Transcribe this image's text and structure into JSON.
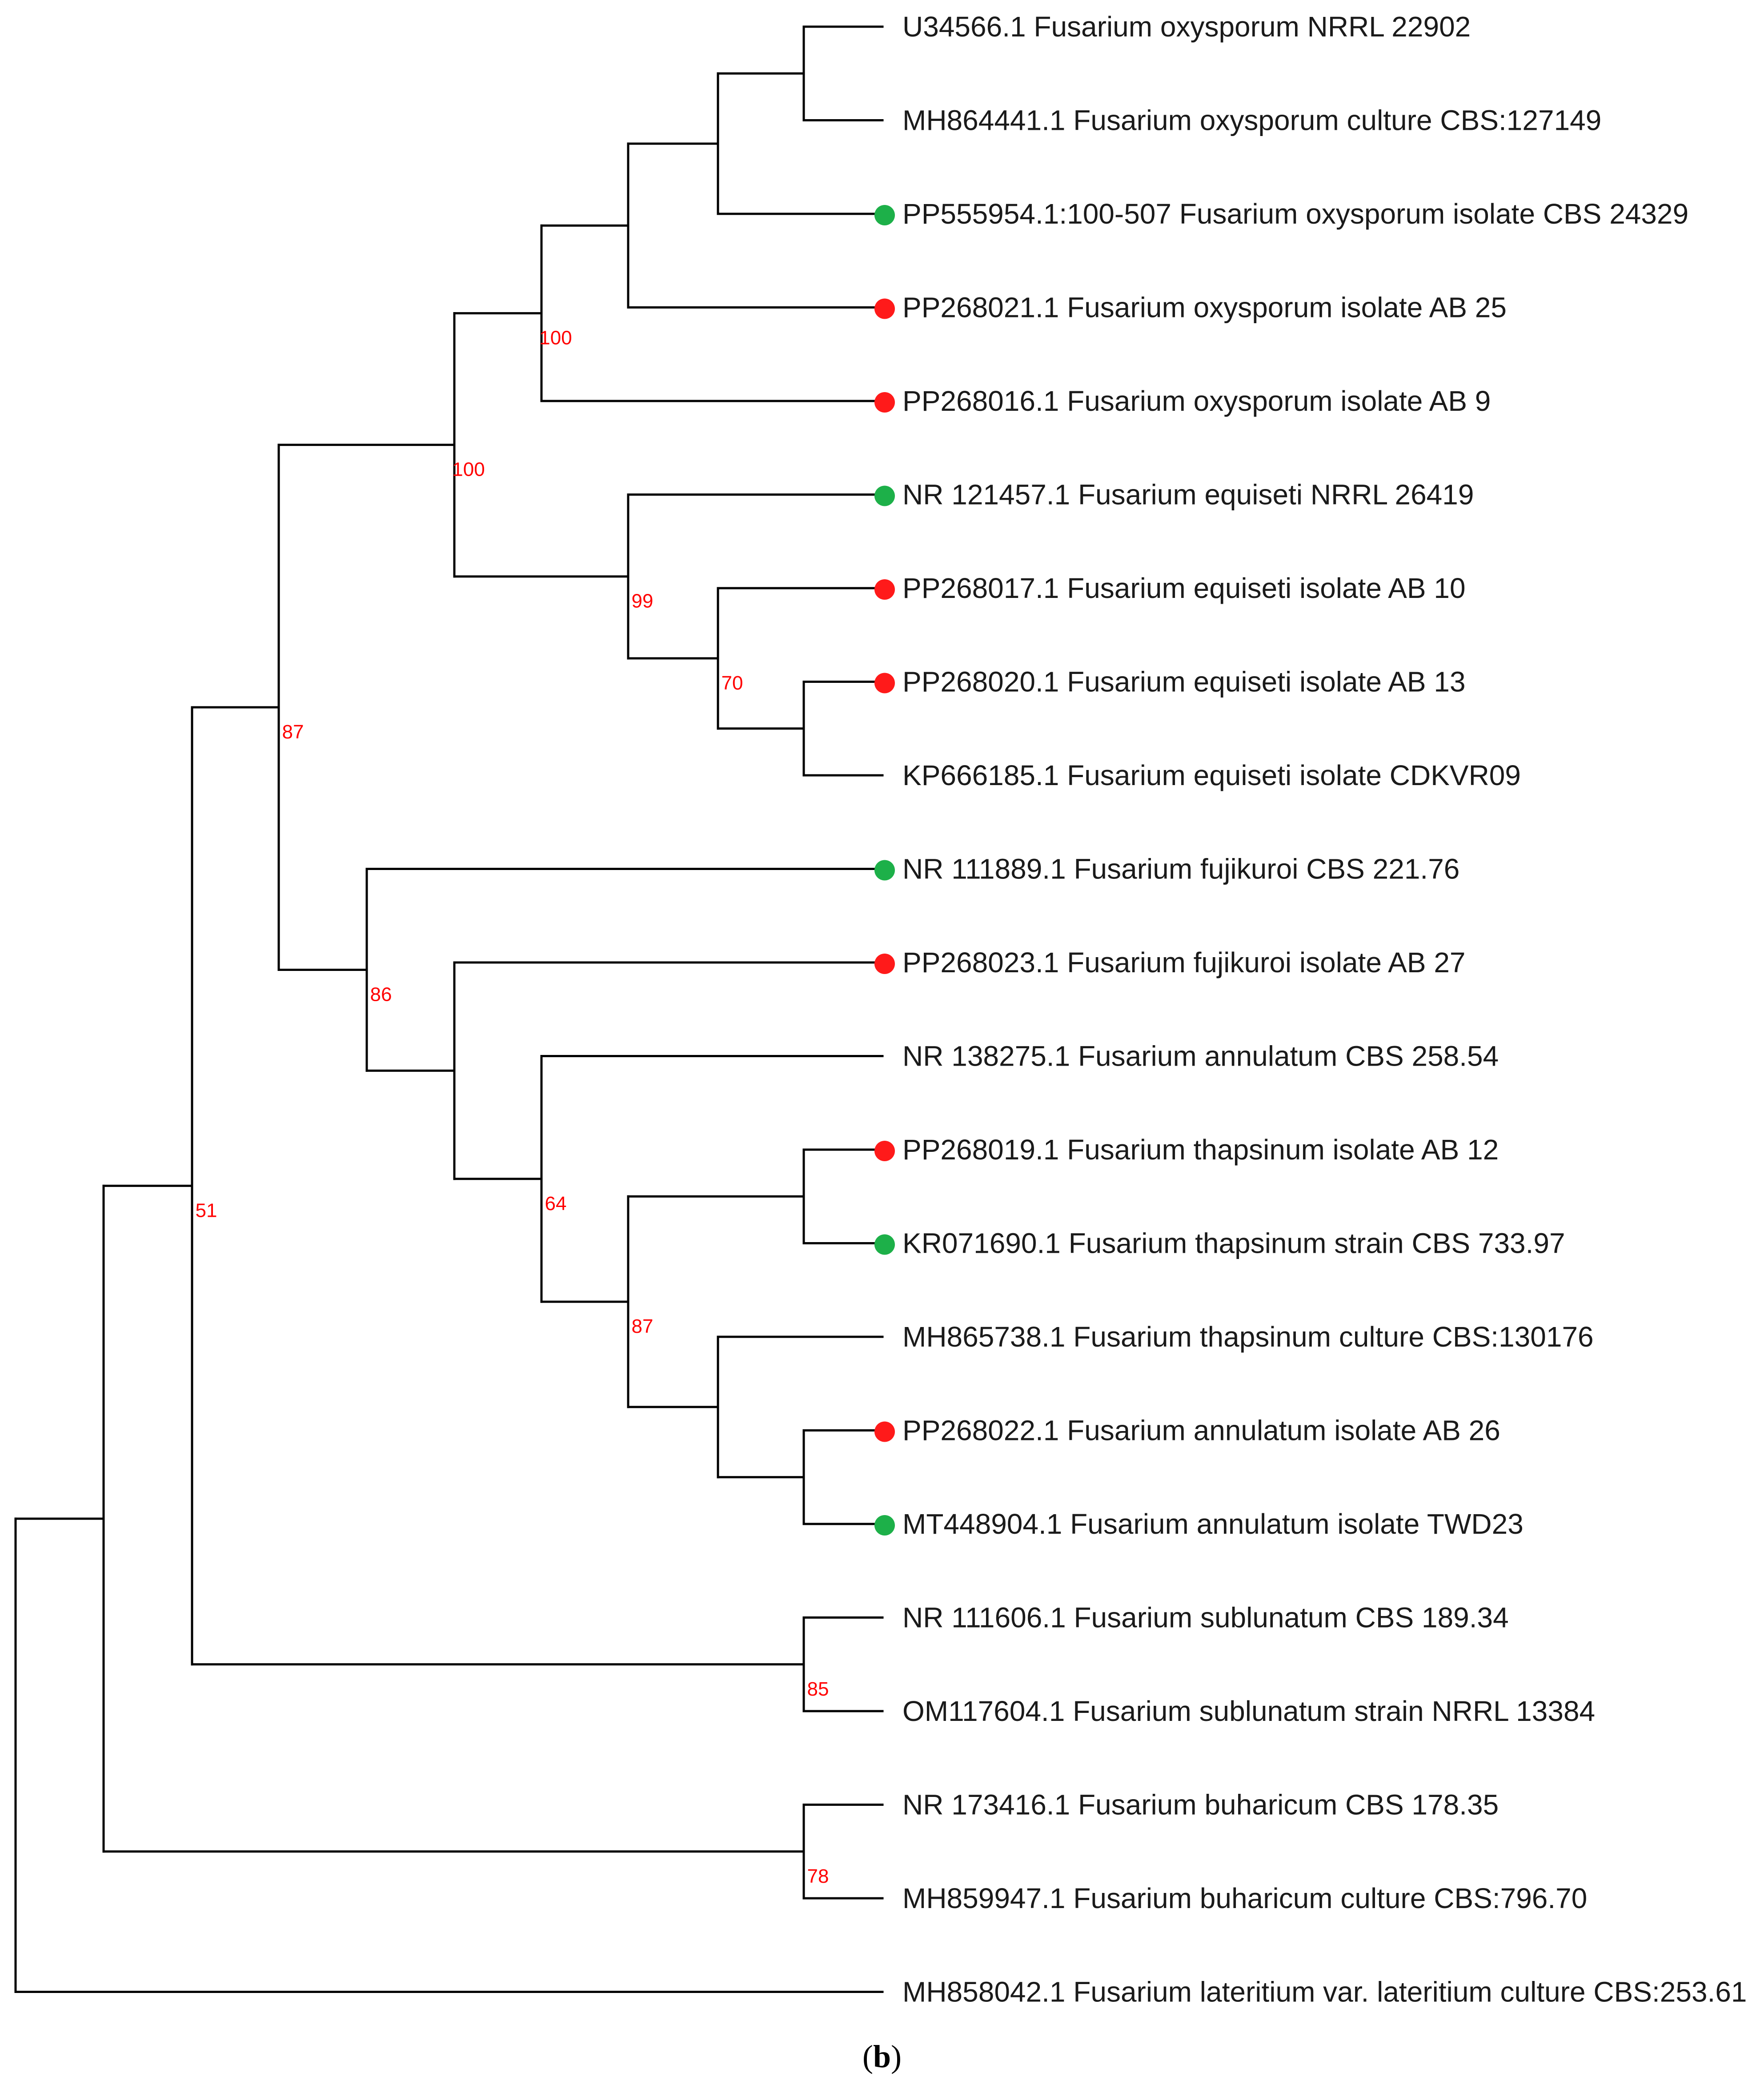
{
  "figure": {
    "caption_open": "(",
    "caption_letter": "b",
    "caption_close": ")"
  },
  "colors": {
    "reference": "#1db049",
    "isolate": "#ff1a1a",
    "support": "#ff0000"
  },
  "tree": {
    "type": "phylogenetic-tree",
    "leaves": [
      {
        "label": "U34566.1 Fusarium oxysporum NRRL 22902",
        "marker": null
      },
      {
        "label": "MH864441.1 Fusarium oxysporum culture CBS:127149",
        "marker": null
      },
      {
        "label": "PP555954.1:100-507 Fusarium oxysporum isolate CBS 24329",
        "marker": "green"
      },
      {
        "label": "PP268021.1 Fusarium oxysporum isolate AB 25",
        "marker": "red"
      },
      {
        "label": "PP268016.1 Fusarium oxysporum isolate AB 9",
        "marker": "red"
      },
      {
        "label": "NR 121457.1 Fusarium equiseti NRRL 26419",
        "marker": "green"
      },
      {
        "label": "PP268017.1 Fusarium equiseti isolate AB 10",
        "marker": "red"
      },
      {
        "label": "PP268020.1 Fusarium equiseti isolate AB 13",
        "marker": "red"
      },
      {
        "label": "KP666185.1 Fusarium equiseti isolate CDKVR09",
        "marker": null
      },
      {
        "label": "NR 111889.1 Fusarium fujikuroi CBS 221.76",
        "marker": "green"
      },
      {
        "label": "PP268023.1 Fusarium fujikuroi isolate AB 27",
        "marker": "red"
      },
      {
        "label": "NR 138275.1 Fusarium annulatum CBS 258.54",
        "marker": null
      },
      {
        "label": "PP268019.1 Fusarium thapsinum isolate AB 12",
        "marker": "red"
      },
      {
        "label": "KR071690.1 Fusarium thapsinum strain CBS 733.97",
        "marker": "green"
      },
      {
        "label": "MH865738.1 Fusarium thapsinum culture CBS:130176",
        "marker": null
      },
      {
        "label": "PP268022.1 Fusarium annulatum isolate AB 26",
        "marker": "red"
      },
      {
        "label": "MT448904.1 Fusarium annulatum isolate TWD23",
        "marker": "green"
      },
      {
        "label": "NR 111606.1 Fusarium sublunatum CBS 189.34",
        "marker": null
      },
      {
        "label": "OM117604.1 Fusarium sublunatum strain NRRL 13384",
        "marker": null
      },
      {
        "label": "NR 173416.1 Fusarium buharicum CBS 178.35",
        "marker": null
      },
      {
        "label": "MH859947.1 Fusarium buharicum culture CBS:796.70",
        "marker": null
      },
      {
        "label": "MH858042.1 Fusarium lateritium var. lateritium culture CBS:253.61",
        "marker": null
      }
    ],
    "clades": [
      {
        "id": "c01",
        "members": [
          0,
          1
        ]
      },
      {
        "id": "c02",
        "members": [
          "c01",
          2
        ]
      },
      {
        "id": "c03",
        "members": [
          "c02",
          3
        ]
      },
      {
        "id": "c04",
        "members": [
          "c03",
          4
        ],
        "support": "100"
      },
      {
        "id": "c05",
        "members": [
          7,
          8
        ]
      },
      {
        "id": "c06",
        "members": [
          6,
          "c05"
        ],
        "support": "70"
      },
      {
        "id": "c07",
        "members": [
          5,
          "c06"
        ],
        "support": "99"
      },
      {
        "id": "c08",
        "members": [
          "c04",
          "c07"
        ],
        "support": "100"
      },
      {
        "id": "c09",
        "members": [
          12,
          13
        ]
      },
      {
        "id": "c10",
        "members": [
          15,
          16
        ]
      },
      {
        "id": "c11",
        "members": [
          14,
          "c10"
        ]
      },
      {
        "id": "c12",
        "members": [
          "c09",
          "c11"
        ],
        "support": "87"
      },
      {
        "id": "c13",
        "members": [
          11,
          "c12"
        ],
        "support": "64"
      },
      {
        "id": "c14",
        "members": [
          10,
          "c13"
        ]
      },
      {
        "id": "c15",
        "members": [
          9,
          "c14"
        ],
        "support": "86"
      },
      {
        "id": "c16",
        "members": [
          "c08",
          "c15"
        ],
        "support": "87"
      },
      {
        "id": "c17",
        "members": [
          17,
          18
        ],
        "support": "85"
      },
      {
        "id": "c18",
        "members": [
          "c16",
          "c17"
        ],
        "support": "51"
      },
      {
        "id": "c19",
        "members": [
          19,
          20
        ],
        "support": "78"
      },
      {
        "id": "c20",
        "members": [
          "c18",
          "c19"
        ]
      },
      {
        "id": "root",
        "members": [
          "c20",
          21
        ]
      }
    ]
  }
}
